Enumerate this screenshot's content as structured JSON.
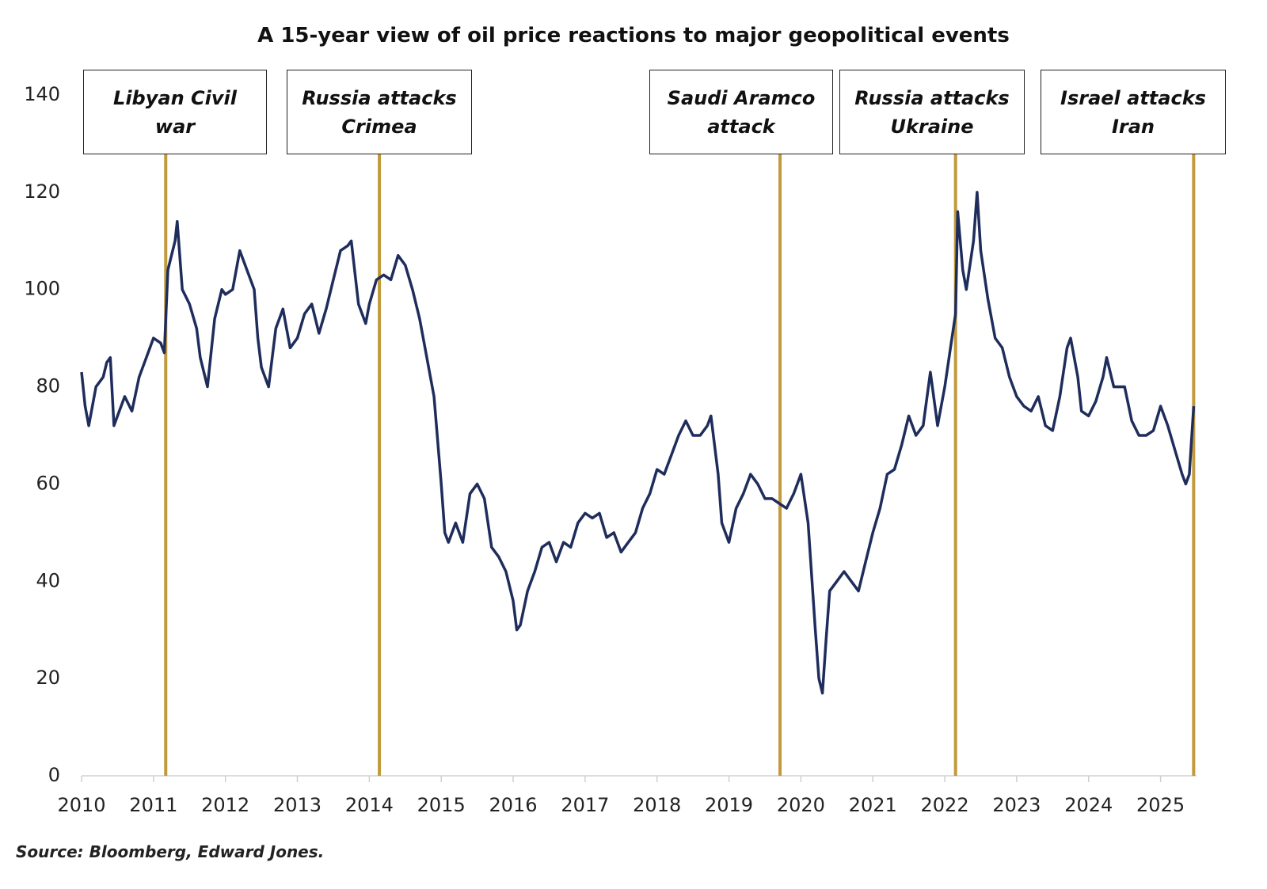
{
  "chart_data": {
    "type": "line",
    "title": "A 15-year view of oil price reactions to major geopolitical events",
    "source": "Source: Bloomberg, Edward Jones.",
    "xlim": [
      2010,
      2025.5
    ],
    "xticks": [
      2010,
      2011,
      2012,
      2013,
      2014,
      2015,
      2016,
      2017,
      2018,
      2019,
      2020,
      2021,
      2022,
      2023,
      2024,
      2025
    ],
    "ylim": [
      0,
      140
    ],
    "yticks": [
      0,
      20,
      40,
      60,
      80,
      100,
      120,
      140
    ],
    "events": [
      {
        "label": "Libyan Civil war",
        "x": 2011.17,
        "color": "#c09a3c"
      },
      {
        "label": "Russia attacks Crimea",
        "x": 2014.14,
        "color": "#c09a3c"
      },
      {
        "label": "Saudi Aramco attack",
        "x": 2019.71,
        "color": "#c09a3c"
      },
      {
        "label": "Russia attacks Ukraine",
        "x": 2022.15,
        "color": "#c09a3c"
      },
      {
        "label": "Israel attacks Iran",
        "x": 2025.46,
        "color": "#c09a3c"
      }
    ],
    "series": [
      {
        "color": "#1f2d5c",
        "x": [
          2010.0,
          2010.05,
          2010.1,
          2010.2,
          2010.3,
          2010.35,
          2010.4,
          2010.45,
          2010.5,
          2010.6,
          2010.7,
          2010.8,
          2010.9,
          2011.0,
          2011.1,
          2011.15,
          2011.2,
          2011.3,
          2011.33,
          2011.4,
          2011.5,
          2011.6,
          2011.65,
          2011.75,
          2011.85,
          2011.95,
          2012.0,
          2012.1,
          2012.2,
          2012.3,
          2012.4,
          2012.45,
          2012.5,
          2012.6,
          2012.7,
          2012.8,
          2012.9,
          2013.0,
          2013.1,
          2013.2,
          2013.3,
          2013.4,
          2013.5,
          2013.6,
          2013.7,
          2013.75,
          2013.85,
          2013.95,
          2014.0,
          2014.1,
          2014.2,
          2014.3,
          2014.4,
          2014.5,
          2014.6,
          2014.7,
          2014.8,
          2014.9,
          2015.0,
          2015.05,
          2015.1,
          2015.2,
          2015.3,
          2015.4,
          2015.5,
          2015.6,
          2015.7,
          2015.8,
          2015.9,
          2016.0,
          2016.05,
          2016.1,
          2016.2,
          2016.3,
          2016.4,
          2016.5,
          2016.6,
          2016.7,
          2016.8,
          2016.9,
          2017.0,
          2017.1,
          2017.2,
          2017.3,
          2017.4,
          2017.5,
          2017.6,
          2017.7,
          2017.8,
          2017.9,
          2018.0,
          2018.1,
          2018.2,
          2018.3,
          2018.4,
          2018.5,
          2018.6,
          2018.7,
          2018.75,
          2018.85,
          2018.9,
          2019.0,
          2019.1,
          2019.2,
          2019.3,
          2019.4,
          2019.5,
          2019.6,
          2019.7,
          2019.8,
          2019.9,
          2020.0,
          2020.1,
          2020.2,
          2020.25,
          2020.3,
          2020.35,
          2020.4,
          2020.5,
          2020.6,
          2020.7,
          2020.8,
          2020.9,
          2021.0,
          2021.1,
          2021.2,
          2021.3,
          2021.4,
          2021.5,
          2021.6,
          2021.7,
          2021.8,
          2021.9,
          2022.0,
          2022.1,
          2022.15,
          2022.18,
          2022.25,
          2022.3,
          2022.4,
          2022.45,
          2022.5,
          2022.6,
          2022.7,
          2022.8,
          2022.9,
          2023.0,
          2023.1,
          2023.2,
          2023.3,
          2023.4,
          2023.5,
          2023.6,
          2023.7,
          2023.75,
          2023.85,
          2023.9,
          2024.0,
          2024.1,
          2024.2,
          2024.25,
          2024.35,
          2024.5,
          2024.6,
          2024.7,
          2024.8,
          2024.9,
          2025.0,
          2025.1,
          2025.2,
          2025.3,
          2025.35,
          2025.4,
          2025.46
        ],
        "values": [
          83,
          76,
          72,
          80,
          82,
          85,
          86,
          72,
          74,
          78,
          75,
          82,
          86,
          90,
          89,
          87,
          104,
          110,
          114,
          100,
          97,
          92,
          86,
          80,
          94,
          100,
          99,
          100,
          108,
          104,
          100,
          90,
          84,
          80,
          92,
          96,
          88,
          90,
          95,
          97,
          91,
          96,
          102,
          108,
          109,
          110,
          97,
          93,
          97,
          102,
          103,
          102,
          107,
          105,
          100,
          94,
          86,
          78,
          60,
          50,
          48,
          52,
          48,
          58,
          60,
          57,
          47,
          45,
          42,
          36,
          30,
          31,
          38,
          42,
          47,
          48,
          44,
          48,
          47,
          52,
          54,
          53,
          54,
          49,
          50,
          46,
          48,
          50,
          55,
          58,
          63,
          62,
          66,
          70,
          73,
          70,
          70,
          72,
          74,
          62,
          52,
          48,
          55,
          58,
          62,
          60,
          57,
          57,
          56,
          55,
          58,
          62,
          52,
          30,
          20,
          17,
          28,
          38,
          40,
          42,
          40,
          38,
          44,
          50,
          55,
          62,
          63,
          68,
          74,
          70,
          72,
          83,
          72,
          80,
          90,
          95,
          116,
          104,
          100,
          110,
          120,
          108,
          98,
          90,
          88,
          82,
          78,
          76,
          75,
          78,
          72,
          71,
          78,
          88,
          90,
          82,
          75,
          74,
          77,
          82,
          86,
          80,
          80,
          73,
          70,
          70,
          71,
          76,
          72,
          67,
          62,
          60,
          62,
          76
        ]
      }
    ]
  }
}
